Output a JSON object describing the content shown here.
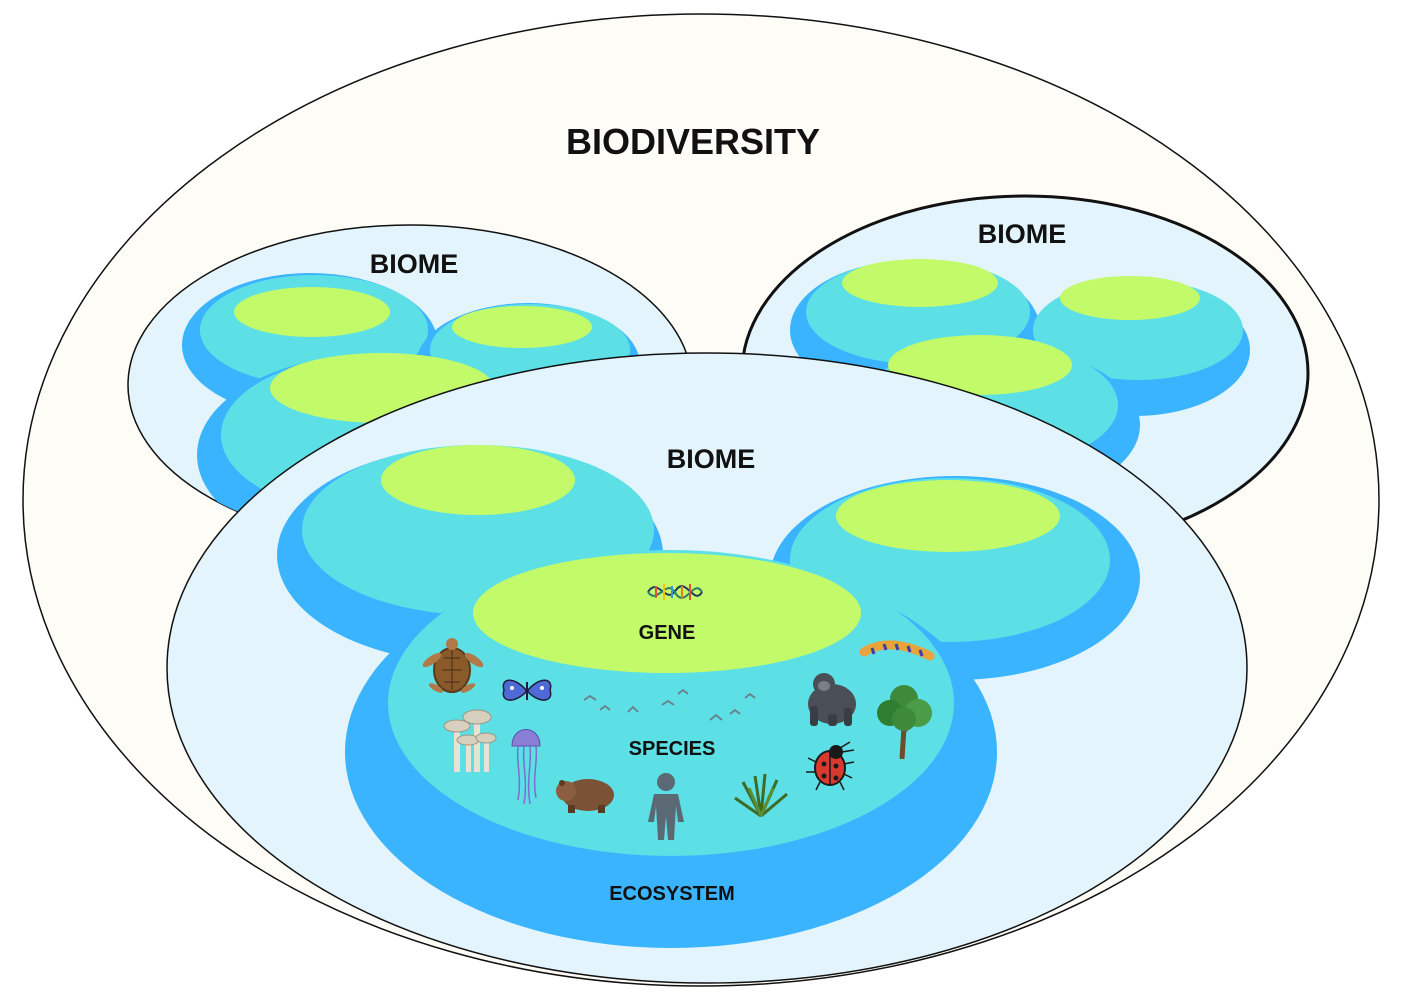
{
  "labels": {
    "biodiversity": "BIODIVERSITY",
    "biome_left": "BIOME",
    "biome_right": "BIOME",
    "biome_front": "BIOME",
    "gene": "GENE",
    "species": "SPECIES",
    "ecosystem": "ECOSYSTEM"
  },
  "colors": {
    "background": "#fdfcf7",
    "biome": "#e3f4fc",
    "ecosystem_outer": "#3ab4ff",
    "ecosystem_inner": "#5ce0e6",
    "gene_top": "#c2fa6a",
    "outline": "#111111"
  },
  "species_icons": [
    "sea-turtle-icon",
    "butterfly-icon",
    "birds-icon",
    "gorilla-icon",
    "caterpillar-icon",
    "tree-icon",
    "mushrooms-icon",
    "jellyfish-icon",
    "wombat-icon",
    "human-icon",
    "grass-plant-icon",
    "ladybug-icon"
  ],
  "gene_icon": "dna-icon"
}
